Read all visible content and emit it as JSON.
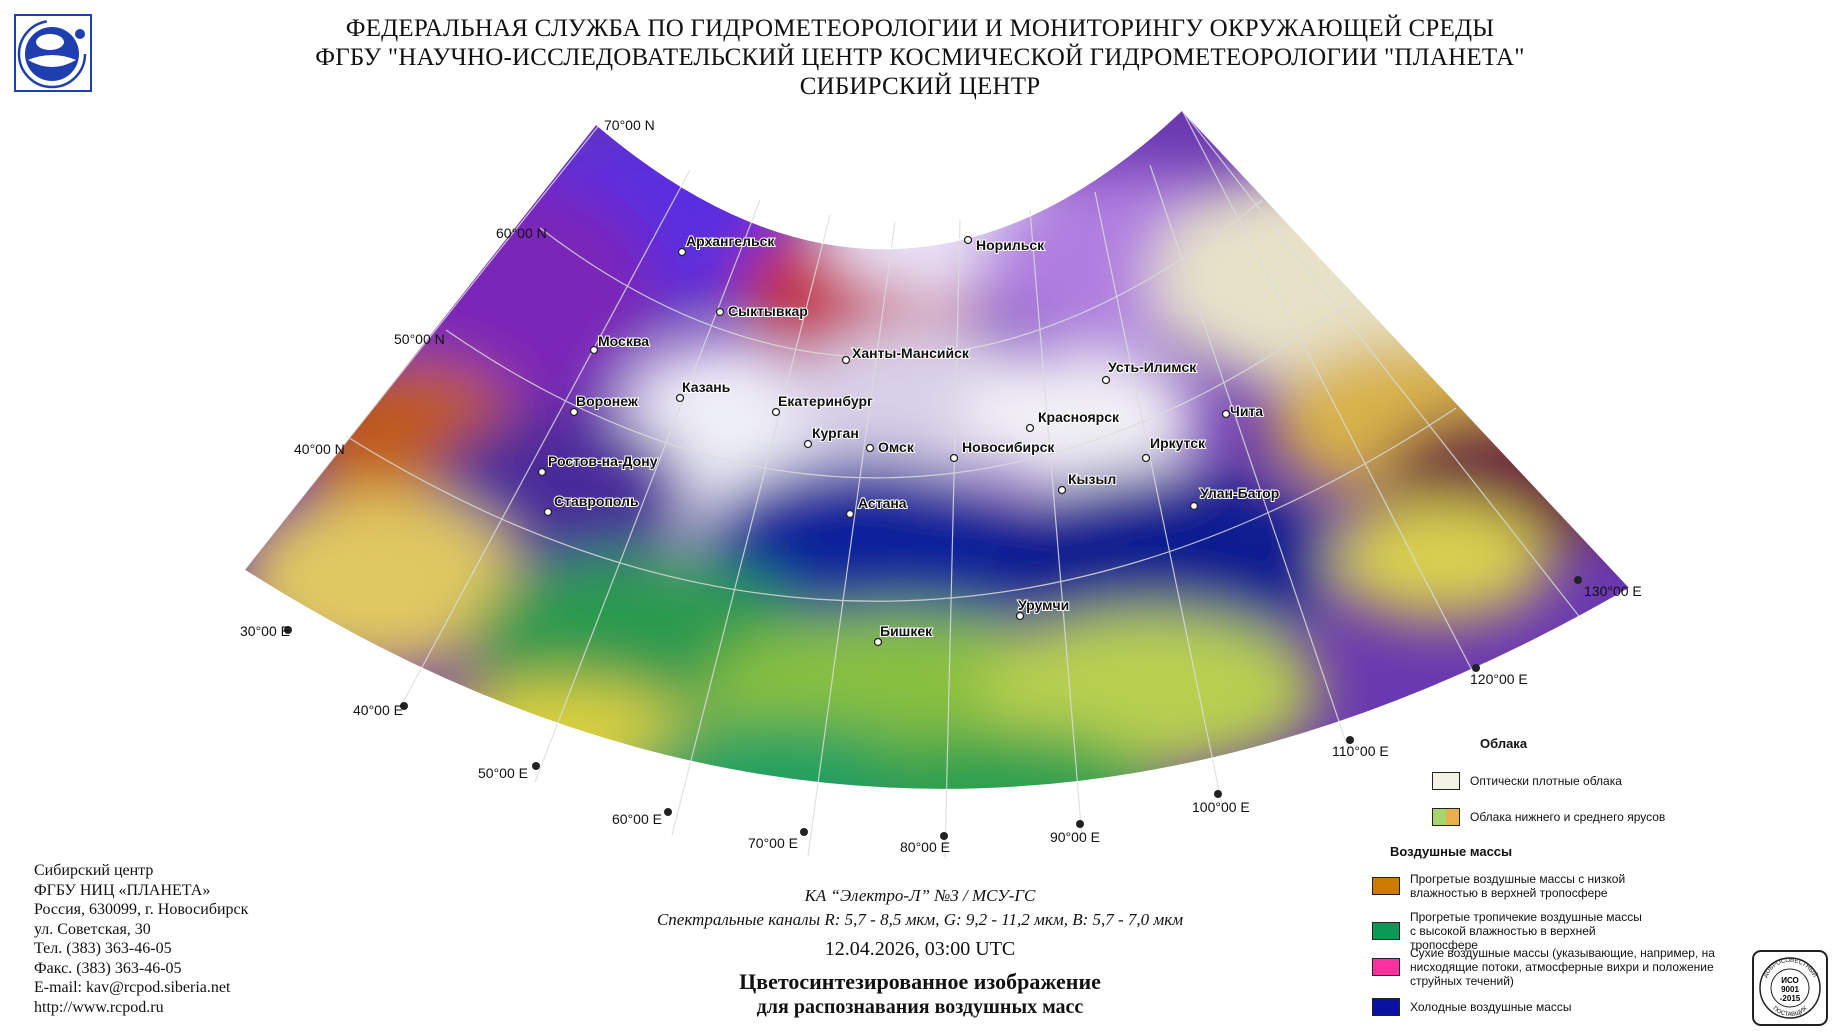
{
  "header": {
    "line1": "ФЕДЕРАЛЬНАЯ СЛУЖБА ПО ГИДРОМЕТЕОРОЛОГИИ И МОНИТОРИНГУ ОКРУЖАЮЩЕЙ СРЕДЫ",
    "line2": "ФГБУ \"НАУЧНО-ИССЛЕДОВАТЕЛЬСКИЙ ЦЕНТР КОСМИЧЕСКОЙ ГИДРОМЕТЕОРОЛОГИИ \"ПЛАНЕТА\"",
    "line3": "СИБИРСКИЙ ЦЕНТР"
  },
  "logo": {
    "icon": "roshydromet-logo-icon",
    "color": "#1f3fb0"
  },
  "map": {
    "latitude_labels": [
      "70°00 N",
      "60°00 N",
      "50°00 N",
      "40°00 N"
    ],
    "longitude_labels": [
      "30°00 E",
      "40°00 E",
      "50°00 E",
      "60°00 E",
      "70°00 E",
      "80°00 E",
      "90°00 E",
      "100°00 E",
      "110°00 E",
      "120°00 E",
      "130°00 E"
    ],
    "cities": [
      "Архангельск",
      "Норильск",
      "Сыктывкар",
      "Москва",
      "Ханты-Мансийск",
      "Усть-Илимск",
      "Казань",
      "Воронеж",
      "Екатеринбург",
      "Красноярск",
      "Чита",
      "Курган",
      "Омск",
      "Новосибирск",
      "Иркутск",
      "Ростов-на-Дону",
      "Кызыл",
      "Улан-Батор",
      "Ставрополь",
      "Астана",
      "Урумчи",
      "Бишкек"
    ]
  },
  "contacts": {
    "org": "Сибирский центр",
    "org2": "ФГБУ НИЦ «ПЛАНЕТА»",
    "address1": "Россия, 630099, г. Новосибирск",
    "address2": "ул. Советская, 30",
    "phone": "Тел. (383) 363-46-05",
    "fax": "Факс. (383) 363-46-05",
    "email": "E-mail: kav@rcpod.siberia.net",
    "web": "http://www.rcpod.ru"
  },
  "caption": {
    "satellite": "КА “Электро-Л” №3 / МСУ-ГС",
    "channels": "Спектральные каналы R: 5,7 - 8,5 мкм, G: 9,2 - 11,2 мкм, B: 5,7 - 7,0 мкм",
    "datetime": "12.04.2026, 03:00 UTC",
    "title1": "Цветосинтезированное изображение",
    "title2": "для распознавания воздушных масс"
  },
  "legend": {
    "clouds_title": "Облака",
    "clouds": [
      {
        "label": "Оптически плотные облака",
        "colors": [
          "#f2f2e6"
        ]
      },
      {
        "label": "Облака нижнего и среднего ярусов",
        "colors": [
          "#a8d46f",
          "#e8b04a"
        ]
      }
    ],
    "airmass_title": "Воздушные массы",
    "airmasses": [
      {
        "label": "Прогретые воздушные массы с низкой влажностью в верхней тропосфере",
        "colors": [
          "#cc7a00"
        ]
      },
      {
        "label": "Прогретые тропичекие воздушные массы с высокой влажностью в верхней тропосфере",
        "colors": [
          "#0a9a55"
        ]
      },
      {
        "label": "Сухие воздушные массы (указывающие, например, на нисходящие потоки, атмосферные вихри и положение струйных течений)",
        "colors": [
          "#ff2fa0"
        ]
      },
      {
        "label": "Холодные воздушные массы",
        "colors": [
          "#0a10a0"
        ]
      }
    ]
  },
  "iso": {
    "text1": "ИСО",
    "text2": "9001",
    "text3": "-2015",
    "ring_top": "ДОБРОСОВЕСТНЫЙ",
    "ring_bottom": "ПОСТАВЩИК"
  }
}
